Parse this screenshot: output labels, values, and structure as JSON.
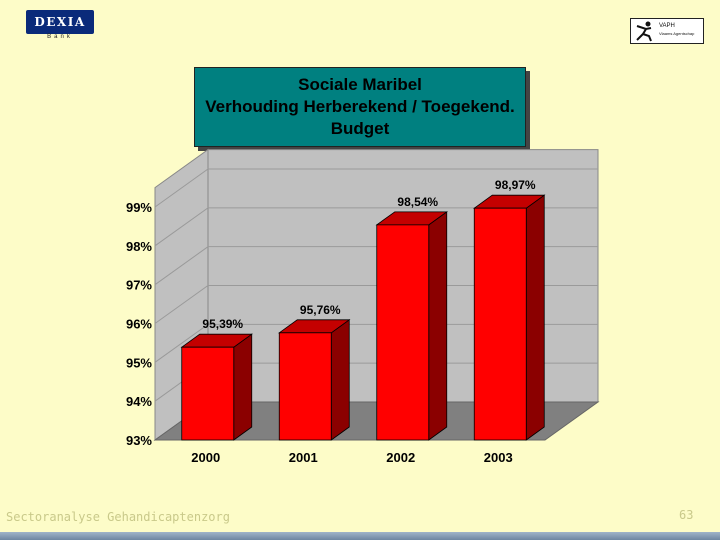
{
  "logos": {
    "bank_name": "DEXIA",
    "bank_sub": "Bank",
    "partner_name": "VAPH",
    "partner_sub": "Vlaams Agentschap"
  },
  "colors": {
    "background": "#fdfcc8",
    "title_box": "#008080",
    "bar_front": "#ff0000",
    "bar_side": "#8b0000",
    "bar_top": "#c40000"
  },
  "footer": {
    "text": "Sectoranalyse Gehandicaptenzorg",
    "page_number": "63"
  },
  "chart_data": {
    "type": "bar",
    "title_lines": [
      "Sociale Maribel",
      "Verhouding Herberekend / Toegekend.",
      "Budget"
    ],
    "categories": [
      "2000",
      "2001",
      "2002",
      "2003"
    ],
    "values": [
      95.39,
      95.76,
      98.54,
      98.97
    ],
    "data_labels": [
      "95,39%",
      "95,76%",
      "98,54%",
      "98,97%"
    ],
    "y_ticks": [
      93,
      94,
      95,
      96,
      97,
      98,
      99
    ],
    "y_tick_labels": [
      "93%",
      "94%",
      "95%",
      "96%",
      "97%",
      "98%",
      "99%"
    ],
    "ylim": [
      93,
      99.5
    ],
    "grid": true,
    "legend": "none",
    "style": "3d"
  }
}
